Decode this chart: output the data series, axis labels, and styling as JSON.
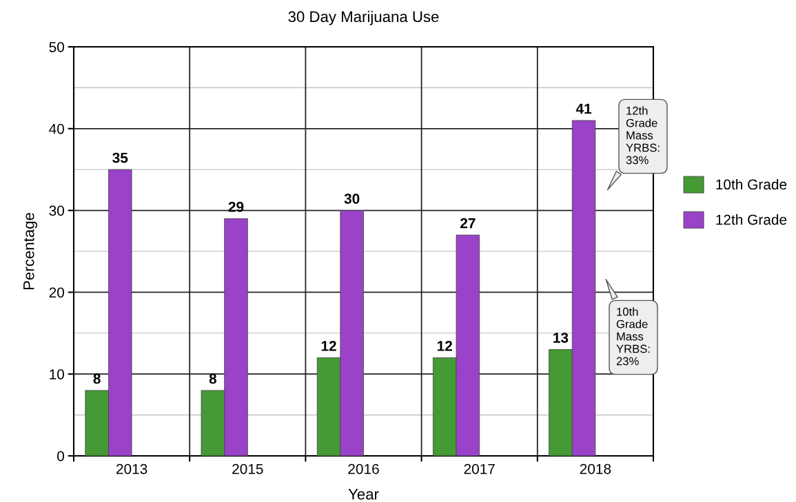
{
  "chart_data": {
    "type": "bar",
    "title": "30 Day Marijuana Use",
    "xlabel": "Year",
    "ylabel": "Percentage",
    "categories": [
      "2013",
      "2015",
      "2016",
      "2017",
      "2018"
    ],
    "series": [
      {
        "name": "10th Grade",
        "color": "#459a35",
        "values": [
          8,
          8,
          12,
          12,
          13
        ]
      },
      {
        "name": "12th Grade",
        "color": "#9a42c8",
        "values": [
          35,
          29,
          30,
          27,
          41
        ]
      }
    ],
    "ylim": [
      0,
      50
    ],
    "yticks": [
      0,
      10,
      20,
      30,
      40,
      50
    ],
    "grid": "y",
    "legend": "right",
    "data_labels": true,
    "annotations": [
      "12th\nGrade\nMass\nYRBS:\n33%",
      "10th\nGrade\nMass\nYRBS:\n23%"
    ]
  }
}
